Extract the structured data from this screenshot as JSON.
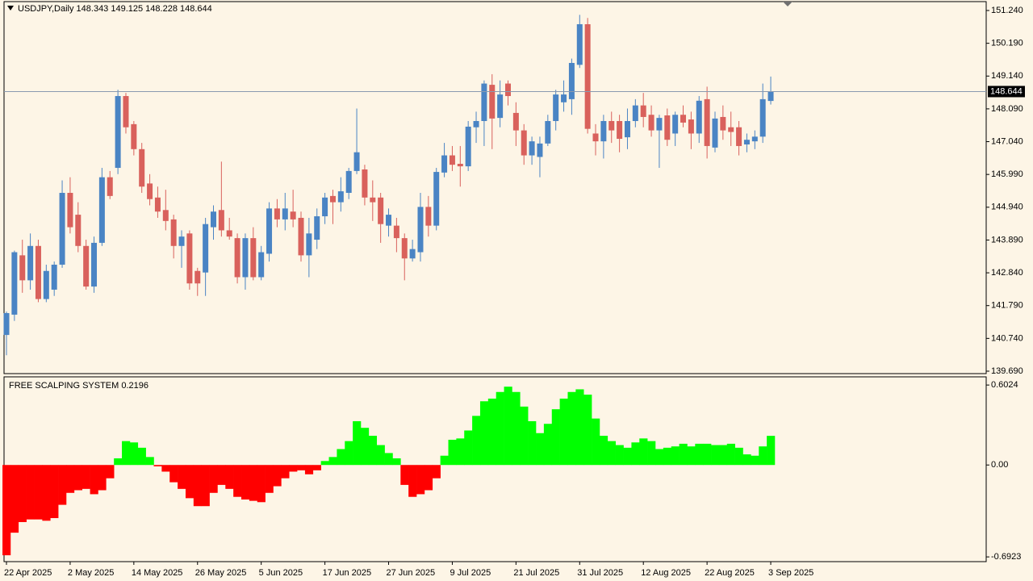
{
  "chart_data": [
    {
      "type": "candlestick",
      "title": "USDJPY,Daily 148.343 149.125 148.228 148.644",
      "categories": [
        "22 Apr 2025",
        null,
        null,
        null,
        null,
        null,
        null,
        null,
        "2 May 2025",
        null,
        null,
        null,
        null,
        null,
        null,
        null,
        "14 May 2025",
        null,
        null,
        null,
        null,
        null,
        null,
        null,
        "26 May 2025",
        null,
        null,
        null,
        null,
        null,
        null,
        null,
        "5 Jun 2025",
        null,
        null,
        null,
        null,
        null,
        null,
        null,
        "17 Jun 2025",
        null,
        null,
        null,
        null,
        null,
        null,
        null,
        "27 Jun 2025",
        null,
        null,
        null,
        null,
        null,
        null,
        null,
        "9 Jul 2025",
        null,
        null,
        null,
        null,
        null,
        null,
        null,
        "21 Jul 2025",
        null,
        null,
        null,
        null,
        null,
        null,
        null,
        "31 Jul 2025",
        null,
        null,
        null,
        null,
        null,
        null,
        null,
        "12 Aug 2025",
        null,
        null,
        null,
        null,
        null,
        null,
        null,
        "22 Aug 2025",
        null,
        null,
        null,
        null,
        null,
        null,
        null,
        "3 Sep 2025"
      ],
      "open": [
        140.85,
        141.5,
        143.4,
        142.6,
        143.7,
        142.0,
        142.3,
        143.1,
        145.4,
        144.7,
        143.7,
        142.4,
        143.8,
        145.9,
        146.2,
        148.5,
        147.6,
        146.8,
        145.7,
        145.25,
        144.85,
        144.55,
        143.7,
        144.1,
        142.9,
        142.85,
        144.3,
        144.85,
        144.2,
        143.95,
        142.7,
        143.95,
        142.7,
        143.45,
        144.9,
        144.55,
        144.8,
        144.6,
        143.4,
        143.9,
        144.65,
        145.3,
        145.1,
        145.4,
        146.1,
        146.15,
        145.25,
        145.25,
        144.35,
        144.35,
        143.95,
        143.3,
        143.5,
        144.95,
        144.35,
        146.05,
        146.6,
        146.33,
        146.25,
        147.5,
        147.7,
        148.86,
        147.8,
        148.9,
        147.96,
        147.4,
        146.6,
        146.55,
        146.98,
        147.7,
        148.3,
        148.4,
        149.5,
        150.8,
        147.3,
        147.05,
        147.7,
        147.7,
        147.18,
        147.7,
        148.2,
        147.9,
        147.4,
        147.88,
        147.3,
        147.9,
        147.75,
        147.3,
        148.4,
        146.85,
        147.83,
        147.5,
        147.5,
        146.95,
        147.05,
        147.2,
        148.343
      ],
      "high": [
        141.6,
        143.55,
        143.9,
        144.1,
        143.9,
        143.1,
        143.2,
        145.8,
        145.9,
        145.1,
        143.9,
        144.0,
        146.2,
        146.1,
        148.7,
        148.6,
        147.7,
        147.0,
        146.0,
        145.6,
        145.5,
        144.7,
        144.2,
        144.2,
        143.0,
        144.6,
        145.0,
        146.4,
        144.6,
        144.1,
        144.1,
        144.3,
        143.7,
        145.1,
        145.2,
        145.4,
        145.5,
        144.8,
        144.6,
        144.9,
        145.4,
        145.5,
        145.9,
        146.2,
        148.1,
        146.3,
        145.8,
        145.4,
        144.9,
        144.6,
        144.1,
        143.9,
        145.4,
        145.3,
        146.2,
        147.0,
        146.9,
        146.9,
        147.7,
        148.0,
        149.0,
        149.2,
        149.0,
        149.0,
        148.3,
        147.6,
        147.2,
        147.2,
        147.9,
        148.7,
        149.0,
        149.7,
        151.1,
        151.0,
        147.6,
        147.9,
        148.0,
        147.9,
        148.1,
        148.4,
        148.6,
        148.2,
        147.9,
        148.1,
        148.0,
        148.2,
        148.0,
        148.5,
        148.8,
        148.0,
        148.2,
        148.0,
        147.7,
        147.3,
        147.4,
        148.9,
        149.125
      ],
      "low": [
        140.2,
        141.3,
        142.2,
        142.3,
        141.9,
        141.9,
        142.1,
        143.0,
        144.1,
        143.5,
        142.3,
        142.2,
        143.7,
        145.2,
        146.0,
        147.3,
        146.6,
        145.4,
        145.0,
        144.6,
        144.2,
        143.3,
        143.0,
        142.3,
        142.1,
        142.1,
        143.9,
        144.0,
        143.9,
        142.5,
        142.3,
        142.6,
        142.6,
        143.2,
        144.3,
        144.2,
        144.3,
        143.2,
        142.7,
        143.6,
        144.4,
        144.4,
        144.8,
        145.2,
        146.0,
        145.0,
        144.5,
        143.8,
        144.0,
        143.5,
        142.6,
        143.2,
        143.2,
        144.0,
        144.2,
        145.9,
        146.1,
        145.6,
        146.1,
        147.0,
        146.9,
        146.8,
        147.5,
        148.2,
        146.9,
        146.3,
        146.3,
        145.9,
        146.9,
        147.4,
        148.0,
        147.9,
        149.4,
        147.3,
        146.6,
        146.5,
        147.0,
        146.7,
        146.8,
        147.5,
        147.5,
        147.2,
        146.2,
        146.9,
        146.9,
        147.5,
        146.8,
        147.0,
        146.5,
        146.7,
        147.1,
        146.9,
        146.6,
        146.7,
        146.8,
        147.0,
        148.228
      ],
      "close": [
        141.55,
        143.5,
        142.6,
        143.7,
        142.0,
        142.9,
        143.1,
        145.4,
        144.3,
        143.7,
        142.4,
        143.8,
        145.9,
        145.3,
        148.5,
        147.5,
        146.8,
        145.6,
        145.2,
        144.8,
        144.5,
        143.7,
        144.0,
        142.5,
        142.5,
        144.4,
        144.8,
        144.2,
        144.0,
        142.7,
        143.95,
        142.7,
        143.5,
        144.9,
        144.55,
        144.9,
        144.55,
        143.4,
        144.1,
        144.65,
        145.25,
        145.1,
        145.45,
        146.1,
        146.7,
        145.25,
        145.1,
        144.4,
        144.7,
        143.95,
        143.3,
        143.6,
        144.95,
        144.35,
        146.07,
        146.6,
        146.3,
        146.25,
        147.52,
        147.7,
        148.9,
        147.78,
        148.55,
        148.5,
        147.4,
        146.6,
        147.05,
        146.98,
        147.7,
        148.55,
        148.55,
        149.56,
        150.8,
        147.45,
        147.05,
        147.7,
        147.4,
        147.13,
        147.7,
        148.2,
        147.83,
        147.4,
        147.8,
        147.1,
        147.9,
        147.65,
        147.3,
        148.35,
        146.9,
        147.78,
        147.4,
        147.35,
        146.9,
        147.1,
        147.2,
        148.4,
        148.644
      ],
      "up_color": "#4a84c4",
      "down_color": "#d9615c",
      "last_price": 148.644,
      "ylim": [
        139.612,
        151.524
      ],
      "yticks": [
        {
          "value": 151.24,
          "label": "151.240"
        },
        {
          "value": 150.19,
          "label": "150.190"
        },
        {
          "value": 149.14,
          "label": "149.140"
        },
        {
          "value": 148.09,
          "label": "148.090"
        },
        {
          "value": 147.04,
          "label": "147.040"
        },
        {
          "value": 145.99,
          "label": "145.990"
        },
        {
          "value": 144.94,
          "label": "144.940"
        },
        {
          "value": 143.89,
          "label": "143.890"
        },
        {
          "value": 142.84,
          "label": "142.840"
        },
        {
          "value": 141.79,
          "label": "141.790"
        },
        {
          "value": 140.74,
          "label": "140.740"
        },
        {
          "value": 139.69,
          "label": "139.690"
        }
      ],
      "grid": false
    },
    {
      "type": "histogram",
      "title": "FREE SCALPING SYSTEM 0.2196",
      "values": [
        -0.68,
        -0.51,
        -0.43,
        -0.41,
        -0.41,
        -0.42,
        -0.4,
        -0.3,
        -0.21,
        -0.19,
        -0.18,
        -0.22,
        -0.19,
        -0.1,
        0.05,
        0.18,
        0.17,
        0.13,
        0.06,
        -0.01,
        -0.05,
        -0.13,
        -0.18,
        -0.25,
        -0.31,
        -0.31,
        -0.21,
        -0.15,
        -0.18,
        -0.24,
        -0.26,
        -0.27,
        -0.28,
        -0.21,
        -0.16,
        -0.1,
        -0.05,
        -0.04,
        -0.07,
        -0.04,
        0.03,
        0.06,
        0.12,
        0.18,
        0.33,
        0.28,
        0.22,
        0.15,
        0.09,
        0.05,
        -0.15,
        -0.24,
        -0.22,
        -0.19,
        -0.1,
        0.07,
        0.19,
        0.2,
        0.26,
        0.37,
        0.48,
        0.5,
        0.55,
        0.59,
        0.55,
        0.44,
        0.33,
        0.24,
        0.31,
        0.42,
        0.5,
        0.55,
        0.57,
        0.53,
        0.35,
        0.22,
        0.18,
        0.15,
        0.13,
        0.17,
        0.2,
        0.18,
        0.12,
        0.13,
        0.14,
        0.16,
        0.14,
        0.16,
        0.16,
        0.15,
        0.15,
        0.16,
        0.13,
        0.08,
        0.07,
        0.14,
        0.2196
      ],
      "positive_color": "#00ff00",
      "negative_color": "#ff0000",
      "ylim": [
        -0.728,
        0.664
      ],
      "yticks": [
        0.6024,
        {
          "value": 0,
          "label": "0.00"
        },
        -0.6923
      ],
      "grid": false
    }
  ]
}
